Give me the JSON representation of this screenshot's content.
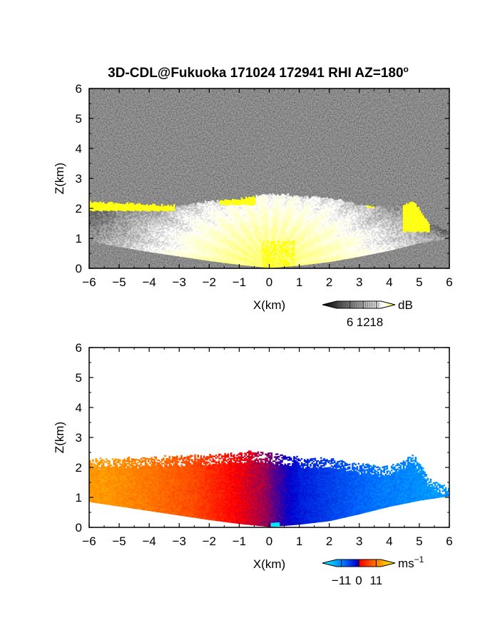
{
  "title_text": "3D-CDL@Fukuoka 171024 172941 RHI AZ=180",
  "title_degree": "o",
  "chart_data": [
    {
      "type": "heatmap",
      "quantity": "backscatter intensity",
      "xlabel": "X(km)",
      "ylabel": "Z(km)",
      "xlim": [
        -6,
        6
      ],
      "ylim": [
        0,
        6
      ],
      "xticks": [
        -6,
        -5,
        -4,
        -3,
        -2,
        -1,
        0,
        1,
        2,
        3,
        4,
        5,
        6
      ],
      "yticks": [
        0,
        1,
        2,
        3,
        4,
        5,
        6
      ],
      "colorbar": {
        "unit": "dB",
        "ticks": [
          6,
          12,
          18
        ],
        "range": [
          0,
          20
        ],
        "colors": [
          "#000000",
          "#ffffff",
          "#ffff00"
        ]
      },
      "background": "noise",
      "echo_top_km": [
        [
          -6,
          2.2
        ],
        [
          -5,
          2.15
        ],
        [
          -4,
          2.1
        ],
        [
          -3,
          2.05
        ],
        [
          -2,
          2.2
        ],
        [
          -1,
          2.3
        ],
        [
          0,
          2.45
        ],
        [
          1,
          2.4
        ],
        [
          2,
          2.3
        ],
        [
          3,
          2.1
        ],
        [
          4,
          2.0
        ],
        [
          4.8,
          2.2
        ],
        [
          5.3,
          1.45
        ],
        [
          6,
          1.2
        ]
      ],
      "echo_base_km": [
        [
          -6,
          0.9
        ],
        [
          -5,
          0.72
        ],
        [
          -4,
          0.55
        ],
        [
          -3,
          0.4
        ],
        [
          -2,
          0.25
        ],
        [
          -1,
          0.12
        ],
        [
          0,
          0.02
        ],
        [
          1,
          0.1
        ],
        [
          2,
          0.22
        ],
        [
          3,
          0.4
        ],
        [
          4,
          0.6
        ],
        [
          5,
          0.85
        ],
        [
          6,
          1.0
        ]
      ],
      "strong_regions": [
        {
          "x": [
            -6,
            -3.2
          ],
          "z": [
            1.9,
            2.3
          ]
        },
        {
          "x": [
            -1.7,
            -0.5
          ],
          "z": [
            2.1,
            2.5
          ]
        },
        {
          "x": [
            -0.3,
            0.8
          ],
          "z": [
            0.0,
            0.9
          ]
        },
        {
          "x": [
            4.4,
            5.3
          ],
          "z": [
            1.2,
            2.5
          ]
        },
        {
          "x": [
            3.2,
            3.5
          ],
          "z": [
            2.0,
            2.2
          ]
        }
      ]
    },
    {
      "type": "heatmap",
      "quantity": "radial velocity",
      "xlabel": "X(km)",
      "ylabel": "Z(km)",
      "xlim": [
        -6,
        6
      ],
      "ylim": [
        0,
        6
      ],
      "xticks": [
        -6,
        -5,
        -4,
        -3,
        -2,
        -1,
        0,
        1,
        2,
        3,
        4,
        5,
        6
      ],
      "yticks": [
        0,
        1,
        2,
        3,
        4,
        5,
        6
      ],
      "colorbar": {
        "unit": "ms",
        "unit_exponent": "-1",
        "ticks": [
          -11,
          0,
          11
        ],
        "range": [
          -14,
          14
        ],
        "colors": [
          "#00ffff",
          "#0070ff",
          "#0000d0",
          "#ff0000",
          "#ff8000",
          "#ffff00"
        ]
      },
      "velocity_samples": [
        {
          "x": -5.5,
          "v": 9.5
        },
        {
          "x": -4,
          "v": 8
        },
        {
          "x": -2.5,
          "v": 6
        },
        {
          "x": -1.2,
          "v": 3
        },
        {
          "x": -0.1,
          "v": 0.5
        },
        {
          "x": 0.1,
          "v": -0.5
        },
        {
          "x": 1,
          "v": -4
        },
        {
          "x": 2,
          "v": -6
        },
        {
          "x": 3.5,
          "v": -8.5
        },
        {
          "x": 5.5,
          "v": -10
        }
      ],
      "echo_top_km": [
        [
          -6,
          2.25
        ],
        [
          -4,
          2.3
        ],
        [
          -2,
          2.4
        ],
        [
          -0.5,
          2.5
        ],
        [
          0,
          2.45
        ],
        [
          1,
          2.3
        ],
        [
          2,
          2.25
        ],
        [
          3,
          2.1
        ],
        [
          4,
          2.0
        ],
        [
          4.8,
          2.4
        ],
        [
          5.3,
          1.6
        ],
        [
          6,
          1.3
        ]
      ],
      "echo_base_km": [
        [
          -6,
          0.85
        ],
        [
          -5,
          0.7
        ],
        [
          -4,
          0.55
        ],
        [
          -3,
          0.4
        ],
        [
          -2,
          0.25
        ],
        [
          -1,
          0.12
        ],
        [
          0,
          0.02
        ],
        [
          1,
          0.1
        ],
        [
          2,
          0.22
        ],
        [
          3,
          0.45
        ],
        [
          4,
          0.7
        ],
        [
          5,
          0.9
        ],
        [
          6,
          1.05
        ]
      ]
    }
  ]
}
